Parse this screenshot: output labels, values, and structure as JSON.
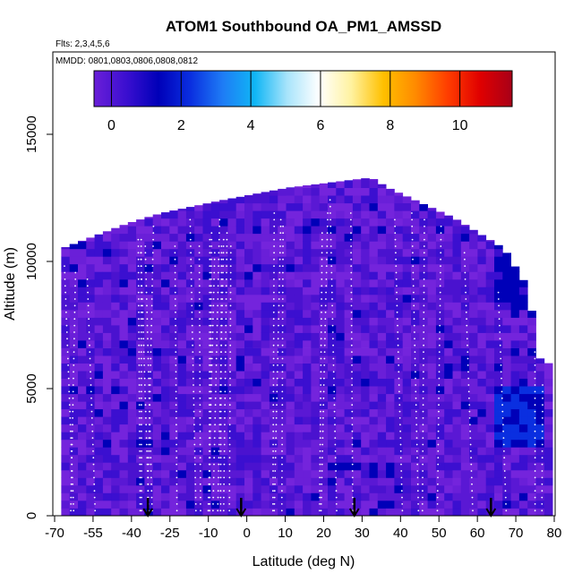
{
  "chart_data": {
    "type": "heatmap",
    "title": "ATOM1 Southbound OA_PM1_AMSSD",
    "subtitle_flights": "Flts: 2,3,4,5,6",
    "subtitle_dates": "MMDD: 0801,0803,0806,0808,0812",
    "xlabel": "Latitude (deg N)",
    "ylabel": "Altitude (m)",
    "xlim": [
      -70,
      80
    ],
    "ylim": [
      0,
      17000
    ],
    "x_tick_labels": [
      "-70",
      "-55",
      "-40",
      "-25",
      "-10",
      "0",
      "10",
      "20",
      "30",
      "40",
      "50",
      "60",
      "70",
      "80"
    ],
    "y_tick_labels": [
      "0",
      "5000",
      "10000",
      "15000"
    ],
    "colorbar": {
      "range": [
        -0.5,
        11.5
      ],
      "tick_labels": [
        "0",
        "2",
        "4",
        "6",
        "8",
        "10"
      ],
      "palette": [
        "#6a1fd8",
        "#3b0fd0",
        "#0000b8",
        "#0a2fe0",
        "#1e7cf5",
        "#10b6f5",
        "#a8e4fb",
        "#ffffff",
        "#fff2a0",
        "#ffc000",
        "#ff8a00",
        "#ff3d00",
        "#e00000",
        "#a80018"
      ]
    },
    "altitude_envelope_m": [
      {
        "lat": -68,
        "top": 10500
      },
      {
        "lat": -58,
        "top": 11000
      },
      {
        "lat": -48,
        "top": 11500
      },
      {
        "lat": -38,
        "top": 11900
      },
      {
        "lat": -20,
        "top": 12400
      },
      {
        "lat": 0,
        "top": 12900
      },
      {
        "lat": 25,
        "top": 13300
      },
      {
        "lat": 30,
        "top": 12900
      },
      {
        "lat": 50,
        "top": 11700
      },
      {
        "lat": 65,
        "top": 10500
      },
      {
        "lat": 72,
        "top": 9000
      },
      {
        "lat": 76,
        "top": 6000
      },
      {
        "lat": 79,
        "top": 6000
      }
    ],
    "typical_value": 0,
    "enhanced_regions": [
      {
        "lat_range": [
          62,
          75
        ],
        "alt_range_m": [
          2500,
          5000
        ],
        "value": 2.5
      },
      {
        "lat_range": [
          60,
          78
        ],
        "alt_range_m": [
          8000,
          11000
        ],
        "value": 1.5
      }
    ],
    "flight_markers_lat": [
      -42,
      -14,
      20,
      61
    ]
  }
}
